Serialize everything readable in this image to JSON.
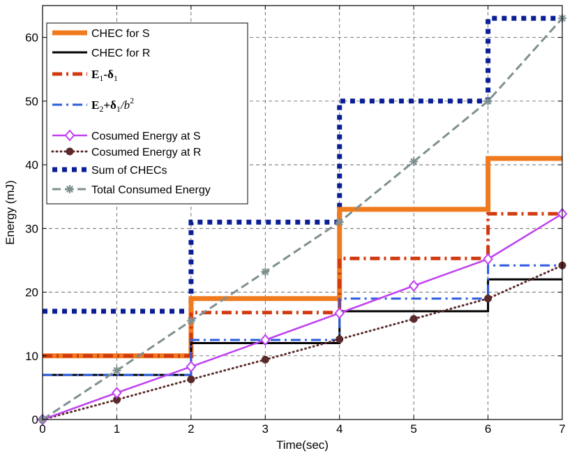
{
  "chart_data": {
    "type": "line",
    "title": "",
    "xlabel": "Time(sec)",
    "ylabel": "Energy (mJ)",
    "xlim": [
      0,
      7
    ],
    "ylim": [
      0,
      65
    ],
    "xticks": [
      "0",
      "1",
      "2",
      "3",
      "4",
      "5",
      "6",
      "7"
    ],
    "yticks": [
      "0",
      "10",
      "20",
      "30",
      "40",
      "50",
      "60"
    ],
    "grid": true,
    "legend_position": "top-left",
    "series": [
      {
        "name": "CHEC for S",
        "style": "step",
        "color": "#f07a1e",
        "dash": "solid",
        "width": 7,
        "marker": "none",
        "x": [
          0,
          2,
          2,
          4,
          4,
          6,
          6,
          7
        ],
        "y": [
          10,
          10,
          19,
          19,
          33,
          33,
          41,
          41
        ]
      },
      {
        "name": "CHEC for R",
        "style": "step",
        "color": "#000000",
        "dash": "solid",
        "width": 3,
        "marker": "none",
        "x": [
          0,
          2,
          2,
          4,
          4,
          6,
          6,
          7
        ],
        "y": [
          7,
          7,
          12,
          12,
          17,
          17,
          22,
          22
        ]
      },
      {
        "name": "E1-δ1",
        "legend_parts": [
          "E",
          "1",
          "-δ",
          "1"
        ],
        "style": "step",
        "color": "#d2390f",
        "dash": "dashdot",
        "width": 5,
        "marker": "none",
        "x": [
          0,
          2,
          2,
          4,
          4,
          6,
          6,
          7
        ],
        "y": [
          10,
          10,
          16.8,
          16.8,
          25.3,
          25.3,
          32.3,
          32.3
        ]
      },
      {
        "name": "E2+δ1/b2",
        "legend_parts": [
          "E",
          "2",
          "+δ",
          "1",
          "/b",
          "2"
        ],
        "style": "step",
        "color": "#2b5ce0",
        "dash": "dashdot",
        "width": 3,
        "marker": "none",
        "x": [
          0,
          2,
          2,
          4,
          4,
          6,
          6,
          7
        ],
        "y": [
          7,
          7,
          12.5,
          12.5,
          19,
          19,
          24.2,
          24.2
        ]
      },
      {
        "name": "Cosumed Energy at S",
        "style": "line",
        "color": "#bf40f0",
        "dash": "solid",
        "width": 2.5,
        "marker": "diamond",
        "x": [
          0,
          1,
          2,
          3,
          4,
          5,
          6,
          7
        ],
        "y": [
          0,
          4.2,
          8.3,
          12.5,
          16.7,
          21,
          25.2,
          32.3
        ]
      },
      {
        "name": "Cosumed Energy at R",
        "style": "line",
        "color": "#5a2a2a",
        "dash": "dot",
        "width": 3,
        "marker": "circle",
        "x": [
          0,
          1,
          2,
          3,
          4,
          5,
          6,
          7
        ],
        "y": [
          0,
          3.1,
          6.3,
          9.4,
          12.6,
          15.8,
          19,
          24.2
        ]
      },
      {
        "name": "Sum of CHECs",
        "style": "step",
        "color": "#0a1e96",
        "dash": "square",
        "width": 7,
        "marker": "none",
        "x": [
          0,
          2,
          2,
          4,
          4,
          6,
          6,
          7
        ],
        "y": [
          17,
          17,
          31,
          31,
          50,
          50,
          63,
          63
        ]
      },
      {
        "name": "Total Consumed Energy",
        "style": "line",
        "color": "#7f8f8f",
        "dash": "dash",
        "width": 3,
        "marker": "star",
        "x": [
          0,
          1,
          2,
          3,
          4,
          5,
          6,
          7
        ],
        "y": [
          0,
          7.7,
          15.5,
          23.2,
          31,
          40.5,
          50,
          63
        ]
      }
    ]
  }
}
